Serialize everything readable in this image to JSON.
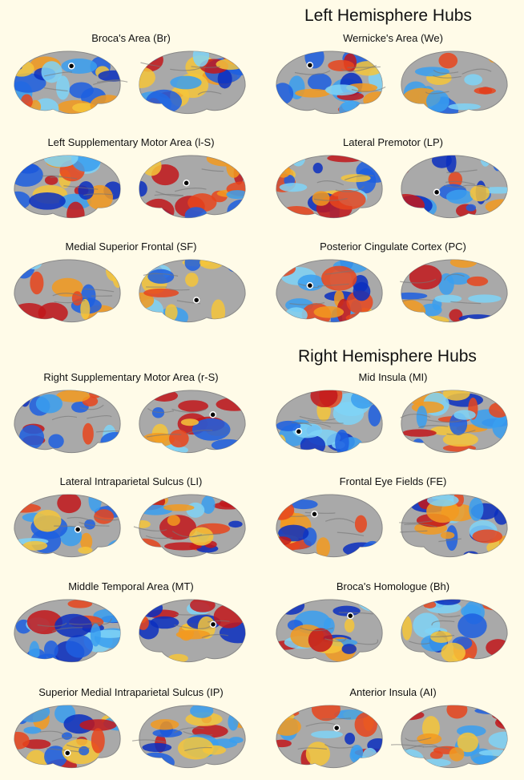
{
  "sections": [
    {
      "title": "Left Hemisphere Hubs",
      "panels": [
        "Broca's Area (Br)",
        "Wernicke's Area (We)",
        "Left Supplementary Motor Area (l-S)",
        "Lateral Premotor (LP)",
        "Medial Superior Frontal (SF)",
        "Posterior Cingulate Cortex (PC)"
      ]
    },
    {
      "title": "Right Hemisphere Hubs",
      "panels": [
        "Right Supplementary Motor Area (r-S)",
        "Mid Insula (MI)",
        "Lateral Intraparietal Sulcus (LI)",
        "Frontal Eye Fields (FE)",
        "Middle Temporal Area (MT)",
        "Broca's Homologue (Bh)",
        "Superior Medial Intraparietal Sulcus (IP)",
        "Anterior Insula (AI)"
      ]
    }
  ]
}
